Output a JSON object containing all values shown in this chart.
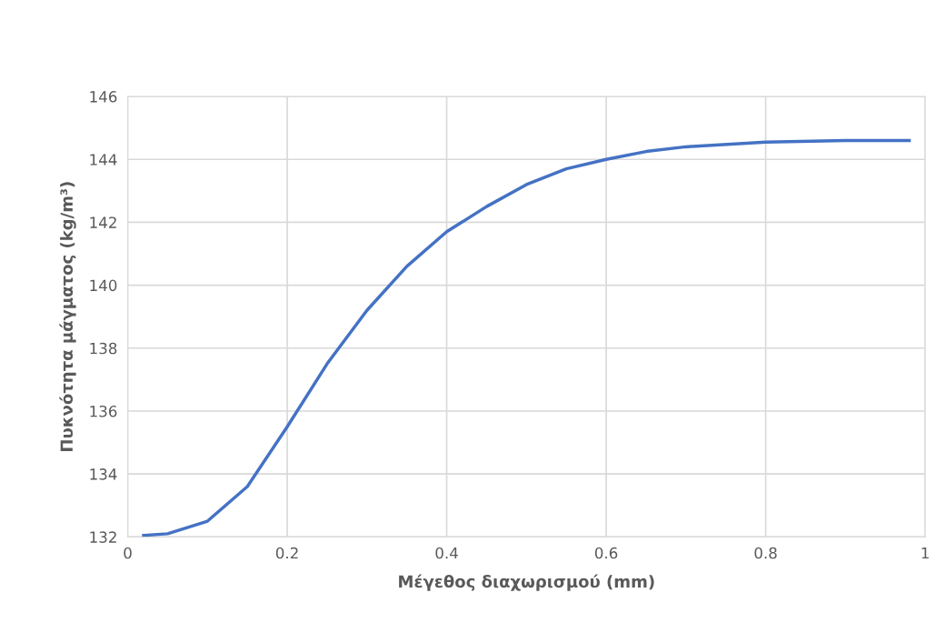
{
  "chart_data": {
    "type": "line",
    "xlabel": "Μέγεθος διαχωρισμού (mm)",
    "ylabel": "Πυκνότητα μάγματος (kg/m³)",
    "series": [
      {
        "color": "#4472c4",
        "x": [
          0.02,
          0.05,
          0.1,
          0.15,
          0.2,
          0.25,
          0.3,
          0.35,
          0.4,
          0.45,
          0.5,
          0.55,
          0.6,
          0.65,
          0.7,
          0.8,
          0.9,
          0.98
        ],
        "values": [
          132.05,
          132.1,
          132.5,
          133.6,
          135.5,
          137.5,
          139.2,
          140.6,
          141.7,
          142.5,
          143.2,
          143.7,
          144.0,
          144.25,
          144.4,
          144.55,
          144.6,
          144.6
        ]
      }
    ],
    "xlim": [
      0,
      1
    ],
    "xticks": [
      0,
      {
        "value": 0.2,
        "label": "0.2"
      },
      {
        "value": 0.4,
        "label": "0.4"
      },
      {
        "value": 0.6,
        "label": "0.6"
      },
      {
        "value": 0.8,
        "label": "0.8"
      },
      1
    ],
    "ylim": [
      132,
      146
    ],
    "yticks": [
      132,
      134,
      136,
      138,
      140,
      142,
      144,
      146
    ],
    "grid": true,
    "marker": "none",
    "line_style": "solid"
  }
}
